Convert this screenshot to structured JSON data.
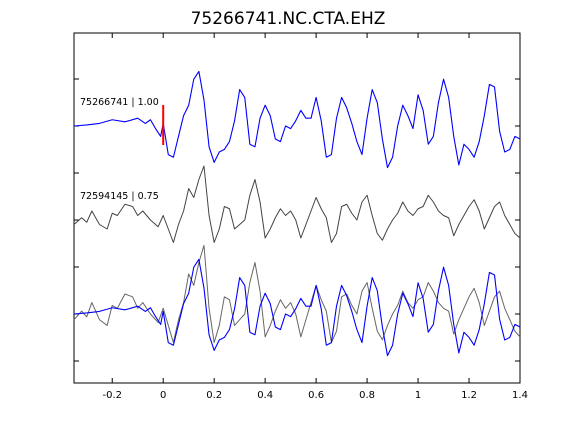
{
  "chart_data": {
    "type": "line",
    "title": "75266741.NC.CTA.EHZ",
    "xlabel": "",
    "ylabel": "",
    "xlim": [
      -0.35,
      1.4
    ],
    "xticks": [
      -0.2,
      0,
      0.2,
      0.4,
      0.6,
      0.8,
      1.0,
      1.2,
      1.4
    ],
    "xtick_labels": [
      "-0.2",
      "0",
      "0.2",
      "0.4",
      "0.6",
      "0.8",
      "1",
      "1.2",
      "1.4"
    ],
    "grid": false,
    "pick_time": 0,
    "pick_color": "#ff0000",
    "traces": [
      {
        "label": "75266741 | 1.00",
        "color": "#0000ff",
        "x": [
          -0.35,
          -0.3,
          -0.25,
          -0.2,
          -0.15,
          -0.1,
          -0.07,
          -0.05,
          -0.03,
          -0.01,
          0.0,
          0.02,
          0.04,
          0.06,
          0.08,
          0.1,
          0.12,
          0.14,
          0.16,
          0.18,
          0.2,
          0.22,
          0.24,
          0.26,
          0.28,
          0.3,
          0.32,
          0.34,
          0.36,
          0.38,
          0.4,
          0.42,
          0.44,
          0.46,
          0.48,
          0.5,
          0.52,
          0.54,
          0.56,
          0.58,
          0.6,
          0.62,
          0.64,
          0.66,
          0.68,
          0.7,
          0.72,
          0.74,
          0.76,
          0.78,
          0.8,
          0.82,
          0.84,
          0.86,
          0.88,
          0.9,
          0.92,
          0.94,
          0.96,
          0.98,
          1.0,
          1.02,
          1.04,
          1.06,
          1.08,
          1.1,
          1.12,
          1.14,
          1.16,
          1.18,
          1.2,
          1.22,
          1.24,
          1.26,
          1.28,
          1.3,
          1.32,
          1.34,
          1.36,
          1.38,
          1.4
        ],
        "y": [
          0.0,
          0.02,
          0.05,
          0.12,
          0.08,
          0.15,
          0.05,
          0.12,
          -0.05,
          -0.2,
          0.05,
          -0.55,
          -0.6,
          -0.2,
          0.2,
          0.4,
          0.9,
          1.05,
          0.5,
          -0.4,
          -0.7,
          -0.5,
          -0.45,
          -0.3,
          0.1,
          0.7,
          0.55,
          -0.35,
          -0.4,
          0.15,
          0.4,
          0.2,
          -0.25,
          -0.3,
          0.0,
          -0.05,
          0.1,
          0.3,
          0.15,
          0.15,
          0.55,
          0.1,
          -0.6,
          -0.55,
          0.15,
          0.55,
          0.35,
          0.05,
          -0.3,
          -0.55,
          0.15,
          0.7,
          0.45,
          -0.25,
          -0.8,
          -0.6,
          0.0,
          0.4,
          0.2,
          -0.05,
          0.6,
          0.3,
          -0.35,
          -0.2,
          0.45,
          0.9,
          0.55,
          -0.2,
          -0.75,
          -0.35,
          -0.45,
          -0.6,
          -0.3,
          0.2,
          0.8,
          0.75,
          -0.1,
          -0.5,
          -0.45,
          -0.2,
          -0.25
        ]
      },
      {
        "label": "72594145 | 0.75",
        "color": "#000000",
        "x": [
          -0.35,
          -0.32,
          -0.3,
          -0.28,
          -0.25,
          -0.22,
          -0.2,
          -0.18,
          -0.15,
          -0.12,
          -0.1,
          -0.08,
          -0.05,
          -0.02,
          0.0,
          0.02,
          0.04,
          0.06,
          0.08,
          0.1,
          0.12,
          0.14,
          0.16,
          0.18,
          0.2,
          0.22,
          0.24,
          0.26,
          0.28,
          0.3,
          0.32,
          0.34,
          0.36,
          0.38,
          0.4,
          0.42,
          0.44,
          0.46,
          0.48,
          0.5,
          0.52,
          0.54,
          0.56,
          0.58,
          0.6,
          0.62,
          0.64,
          0.66,
          0.68,
          0.7,
          0.72,
          0.74,
          0.76,
          0.78,
          0.8,
          0.82,
          0.84,
          0.86,
          0.88,
          0.9,
          0.92,
          0.94,
          0.96,
          0.98,
          1.0,
          1.02,
          1.04,
          1.06,
          1.08,
          1.1,
          1.12,
          1.14,
          1.16,
          1.18,
          1.2,
          1.22,
          1.24,
          1.26,
          1.28,
          1.3,
          1.32,
          1.34,
          1.36,
          1.38,
          1.4
        ],
        "y": [
          -0.1,
          0.05,
          -0.05,
          0.2,
          -0.1,
          -0.2,
          0.15,
          0.1,
          0.35,
          0.3,
          0.1,
          0.2,
          0.0,
          -0.15,
          0.1,
          -0.2,
          -0.5,
          -0.1,
          0.2,
          0.7,
          0.5,
          0.9,
          1.2,
          0.1,
          -0.5,
          -0.2,
          0.3,
          0.25,
          -0.2,
          -0.1,
          0.0,
          0.55,
          0.9,
          0.4,
          -0.4,
          -0.2,
          0.05,
          0.25,
          0.1,
          0.2,
          0.0,
          -0.4,
          -0.1,
          0.2,
          0.5,
          0.25,
          0.05,
          -0.5,
          -0.3,
          0.3,
          0.35,
          0.15,
          0.0,
          0.4,
          0.55,
          0.1,
          -0.3,
          -0.45,
          -0.2,
          0.0,
          0.15,
          0.4,
          0.2,
          0.1,
          0.25,
          0.3,
          0.55,
          0.4,
          0.2,
          0.1,
          0.05,
          -0.35,
          -0.1,
          0.1,
          0.3,
          0.45,
          0.2,
          -0.2,
          0.05,
          0.3,
          0.4,
          0.1,
          -0.1,
          -0.3,
          -0.4
        ]
      }
    ]
  }
}
